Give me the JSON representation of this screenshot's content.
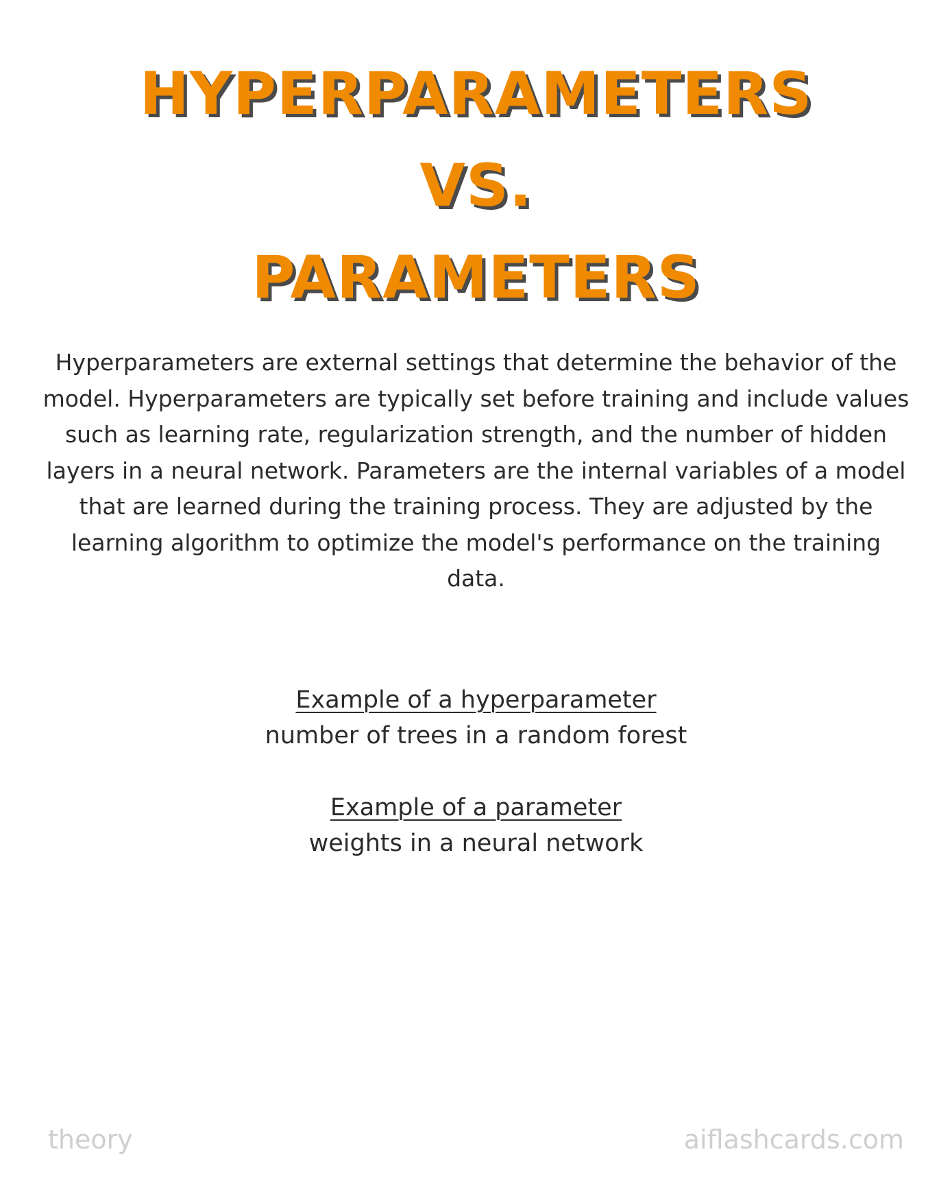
{
  "title": {
    "line1": "HYPERPARAMETERS",
    "line2": "VS.",
    "line3": "PARAMETERS"
  },
  "intro": "Hyperparameters are external settings that determine the behavior of the model. Hyperparameters are typically set before training and include values such as learning rate, regularization strength, and the number of hidden layers in a neural network. Parameters are the internal variables of a model that are learned during the training process. They are adjusted by the learning algorithm to optimize the model's performance on the training data.",
  "examples": {
    "hyperparameter": {
      "heading": "Example of a hyperparameter",
      "text": "number of trees in a random forest"
    },
    "parameter": {
      "heading": "Example of a parameter",
      "text": "weights in a neural network"
    }
  },
  "footer": {
    "category": "theory",
    "site": "aiflashcards.com"
  },
  "colors": {
    "title": "#f08a00",
    "title_shadow": "#4a4a4a",
    "body_text": "#2b2b2b",
    "footer_text": "#cfcfcf",
    "background": "#ffffff"
  }
}
